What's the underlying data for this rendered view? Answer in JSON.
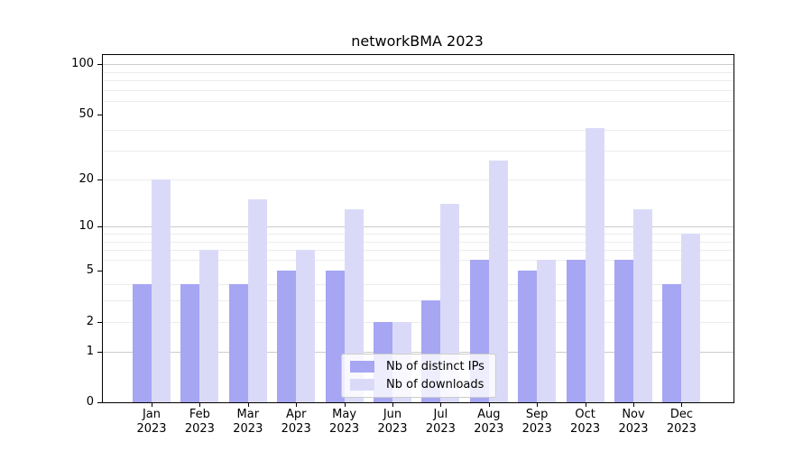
{
  "chart_data": {
    "type": "bar",
    "title": "networkBMA 2023",
    "categories": [
      "Jan",
      "Feb",
      "Mar",
      "Apr",
      "May",
      "Jun",
      "Jul",
      "Aug",
      "Sep",
      "Oct",
      "Nov",
      "Dec"
    ],
    "x_year_label": "2023",
    "series": [
      {
        "name": "Nb of distinct IPs",
        "color": "#a6a6f3",
        "values": [
          4,
          4,
          4,
          5,
          5,
          2,
          3,
          6,
          5,
          6,
          6,
          4
        ]
      },
      {
        "name": "Nb of downloads",
        "color": "#dadaf8",
        "values": [
          20,
          7,
          15,
          7,
          13,
          2,
          14,
          26,
          6,
          41,
          13,
          9
        ]
      }
    ],
    "xlabel": "",
    "ylabel": "",
    "yscale": "log1p",
    "ylim": [
      0,
      113
    ],
    "ytick_values": [
      0,
      1,
      2,
      5,
      10,
      20,
      50,
      100
    ],
    "ytick_labels": [
      "0",
      "1",
      "2",
      "5",
      "10",
      "20",
      "50",
      "100"
    ],
    "grid": {
      "on": true,
      "major_values": [
        1,
        10,
        100
      ],
      "minor_values": [
        2,
        3,
        4,
        6,
        7,
        8,
        9,
        20,
        30,
        40,
        60,
        70,
        80,
        90
      ],
      "major_color": "#cccccc",
      "minor_color": "#ececec"
    },
    "legend": {
      "position": "lower center",
      "entries": [
        "Nb of distinct IPs",
        "Nb of downloads"
      ]
    },
    "axis_color": "#000000",
    "background_color": "#ffffff"
  }
}
